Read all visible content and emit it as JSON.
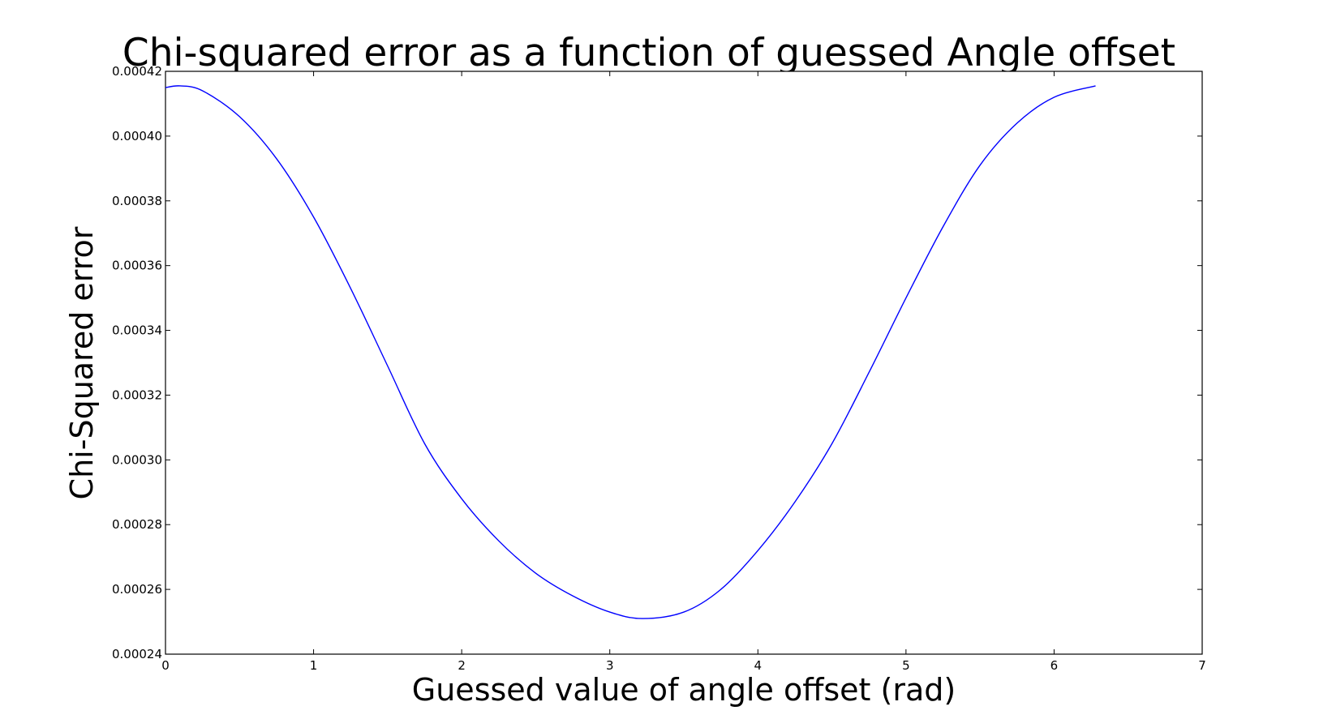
{
  "chart_data": {
    "type": "line",
    "title": "Chi-squared error as a function of guessed Angle offset",
    "xlabel": "Guessed value of angle offset (rad)",
    "ylabel": "Chi-Squared error",
    "xlim": [
      0,
      7
    ],
    "ylim": [
      0.00024,
      0.00042
    ],
    "xticks": [
      0,
      1,
      2,
      3,
      4,
      5,
      6,
      7
    ],
    "yticks": [
      0.00024,
      0.00026,
      0.00028,
      0.0003,
      0.00032,
      0.00034,
      0.00036,
      0.00038,
      0.0004,
      0.00042
    ],
    "xtick_labels": [
      "0",
      "1",
      "2",
      "3",
      "4",
      "5",
      "6",
      "7"
    ],
    "ytick_labels": [
      "0.00024",
      "0.00026",
      "0.00028",
      "0.00030",
      "0.00032",
      "0.00034",
      "0.00036",
      "0.00038",
      "0.00040",
      "0.00042"
    ],
    "grid": false,
    "series": [
      {
        "color": "#0000ff",
        "x": [
          0,
          0.1,
          0.25,
          0.5,
          0.75,
          1.0,
          1.25,
          1.5,
          1.75,
          2.0,
          2.25,
          2.5,
          2.75,
          3.0,
          3.22,
          3.5,
          3.75,
          4.0,
          4.25,
          4.5,
          4.75,
          5.0,
          5.25,
          5.5,
          5.75,
          6.0,
          6.28
        ],
        "y": [
          0.000415,
          0.0004155,
          0.000414,
          0.000406,
          0.000393,
          0.000375,
          0.000353,
          0.000329,
          0.000305,
          0.000288,
          0.000275,
          0.000265,
          0.000258,
          0.000253,
          0.000251,
          0.000253,
          0.00026,
          0.000272,
          0.000287,
          0.000305,
          0.000327,
          0.00035,
          0.000372,
          0.000391,
          0.000404,
          0.000412,
          0.0004155
        ]
      }
    ]
  }
}
